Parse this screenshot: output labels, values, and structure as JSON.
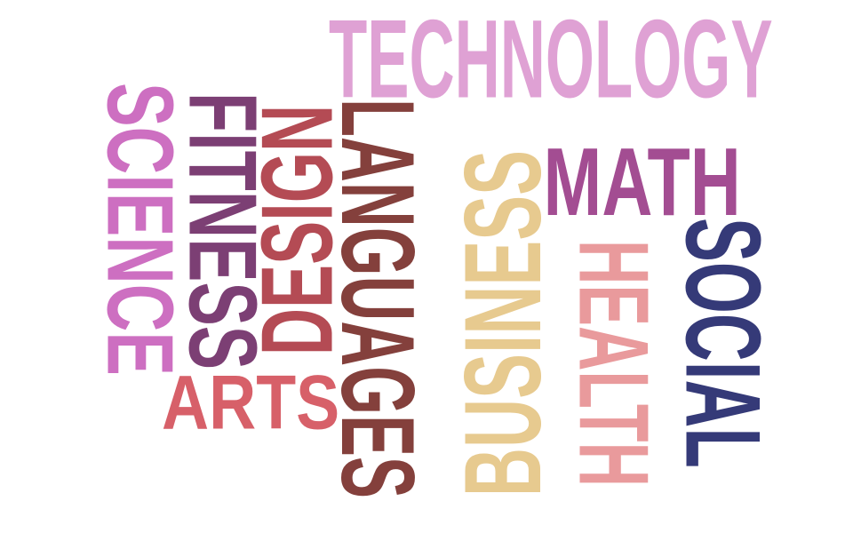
{
  "cloud": {
    "words": [
      {
        "text": "TECHNOLOGY",
        "color": "#dfa1d4",
        "orientation": "horizontal"
      },
      {
        "text": "MATH",
        "color": "#a34d92",
        "orientation": "horizontal"
      },
      {
        "text": "ARTS",
        "color": "#d76069",
        "orientation": "horizontal"
      },
      {
        "text": "SCIENCE",
        "color": "#cd6fc1",
        "orientation": "rotated-cw"
      },
      {
        "text": "FITNESS",
        "color": "#7c3f74",
        "orientation": "rotated-cw"
      },
      {
        "text": "DESIGN",
        "color": "#b44b54",
        "orientation": "rotated-ccw"
      },
      {
        "text": "LANGUAGES",
        "color": "#84403c",
        "orientation": "rotated-cw"
      },
      {
        "text": "BUSINESS",
        "color": "#e7ca8f",
        "orientation": "rotated-ccw"
      },
      {
        "text": "HEALTH",
        "color": "#e99a9c",
        "orientation": "rotated-cw"
      },
      {
        "text": "SOCIAL",
        "color": "#353a78",
        "orientation": "rotated-cw"
      }
    ]
  }
}
